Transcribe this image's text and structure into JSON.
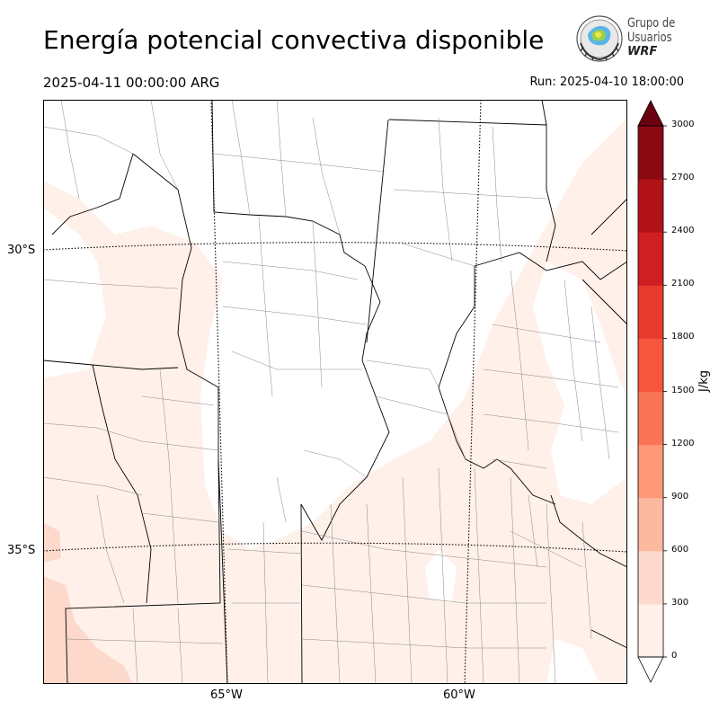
{
  "header": {
    "title": "Energía potencial convectiva disponible",
    "valid_time": "2025-04-11 00:00:00 ARG",
    "run_time": "Run: 2025-04-10 18:00:00"
  },
  "logo": {
    "line1": "Grupo de",
    "line2": "Usuarios",
    "line3": "WRF"
  },
  "map": {
    "variable": "CAPE",
    "lat_labels": [
      "30°S",
      "35°S"
    ],
    "lon_labels": [
      "65°W",
      "60°W"
    ],
    "colors": {
      "ocean": "#ffffff",
      "border": "#000000",
      "department": "#888888",
      "gridline": "#000000"
    }
  },
  "colorbar": {
    "unit": "J/kg",
    "ticks": [
      "0",
      "300",
      "600",
      "900",
      "1200",
      "1500",
      "1800",
      "2100",
      "2400",
      "2700",
      "3000"
    ],
    "colors": [
      "#fff0ea",
      "#fcd9cc",
      "#fcb99f",
      "#fc9777",
      "#fa7557",
      "#f6563d",
      "#e93a2e",
      "#d01f22",
      "#b11218",
      "#890a13"
    ],
    "over_color": "#6b0011",
    "under_color": "#ffffff"
  }
}
